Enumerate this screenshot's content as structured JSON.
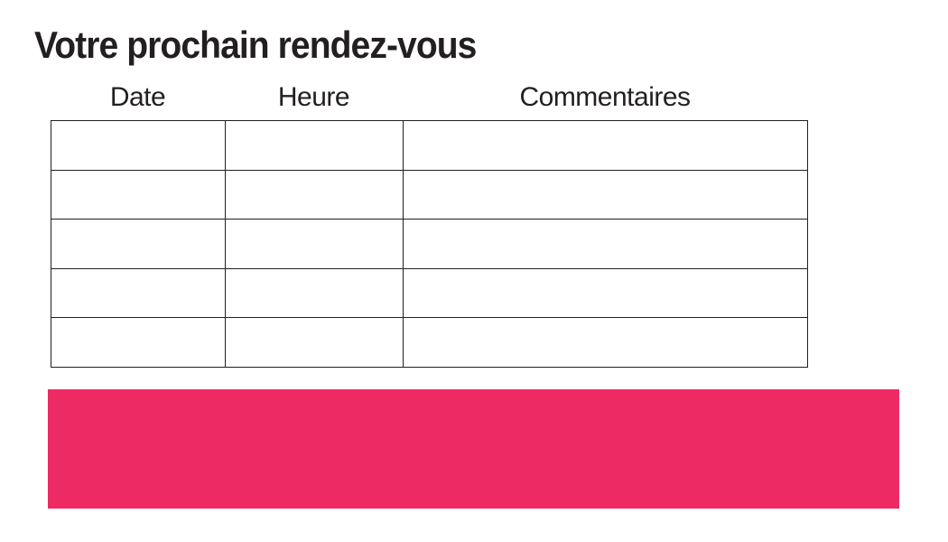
{
  "page": {
    "title": "Votre prochain rendez-vous"
  },
  "appointments_table": {
    "headers": [
      "Date",
      "Heure",
      "Commentaires"
    ],
    "row_count": 5,
    "rows": [
      [
        "",
        "",
        ""
      ],
      [
        "",
        "",
        ""
      ],
      [
        "",
        "",
        ""
      ],
      [
        "",
        "",
        ""
      ],
      [
        "",
        "",
        ""
      ]
    ]
  },
  "colors": {
    "accent_pink": "#ED2A63",
    "border": "#231F20",
    "text": "#231F20"
  }
}
